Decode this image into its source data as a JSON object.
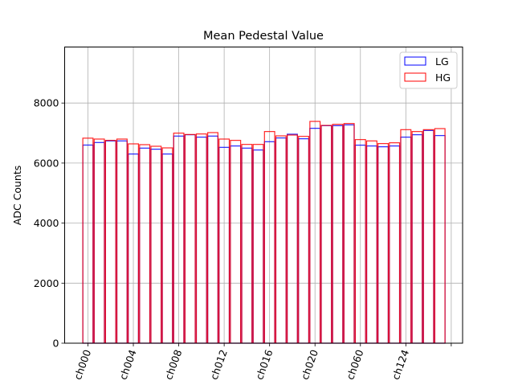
{
  "chart_data": {
    "type": "bar",
    "title": "Mean Pedestal Value",
    "xlabel": "",
    "ylabel": "ADC Counts",
    "ylim": [
      0,
      9866
    ],
    "xlim": [
      -2.05,
      33
    ],
    "yticks": [
      0,
      2000,
      4000,
      6000,
      8000
    ],
    "xticks": [
      {
        "pos": 0,
        "label": "ch000"
      },
      {
        "pos": 4,
        "label": "ch004"
      },
      {
        "pos": 8,
        "label": "ch008"
      },
      {
        "pos": 12,
        "label": "ch012"
      },
      {
        "pos": 16,
        "label": "ch016"
      },
      {
        "pos": 20,
        "label": "ch020"
      },
      {
        "pos": 24,
        "label": "ch060"
      },
      {
        "pos": 28,
        "label": "ch124"
      },
      {
        "pos": 32,
        "label": ""
      }
    ],
    "grid": true,
    "legend": "top-right",
    "style": "outline-bars",
    "series": [
      {
        "name": "LG",
        "color": "#0000ff",
        "values": [
          6600,
          6685,
          6738,
          6738,
          6302,
          6498,
          6463,
          6302,
          6899,
          6944,
          6864,
          6899,
          6524,
          6570,
          6498,
          6436,
          6712,
          6837,
          6961,
          6810,
          7158,
          7246,
          7246,
          7273,
          6597,
          6570,
          6543,
          6570,
          6864,
          6944,
          7086,
          6917
        ]
      },
      {
        "name": "HG",
        "color": "#ff0000",
        "values": [
          6830,
          6800,
          6757,
          6800,
          6640,
          6613,
          6560,
          6506,
          6998,
          6952,
          6970,
          7015,
          6800,
          6757,
          6622,
          6622,
          7051,
          6907,
          6934,
          6890,
          7388,
          7255,
          7291,
          7318,
          6783,
          6738,
          6650,
          6676,
          7113,
          7051,
          7113,
          7148
        ]
      }
    ]
  }
}
